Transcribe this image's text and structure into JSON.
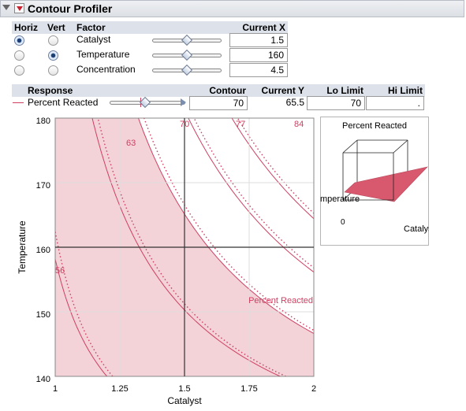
{
  "outline": {
    "title": "Contour Profiler"
  },
  "factor_table": {
    "headers": {
      "horiz": "Horiz",
      "vert": "Vert",
      "factor": "Factor",
      "current_x": "Current X"
    },
    "rows": [
      {
        "name": "Catalyst",
        "value": "1.5",
        "horiz": true,
        "vert": false
      },
      {
        "name": "Temperature",
        "value": "160",
        "horiz": false,
        "vert": true
      },
      {
        "name": "Concentration",
        "value": "4.5",
        "horiz": false,
        "vert": false
      }
    ]
  },
  "response_table": {
    "headers": {
      "response": "Response",
      "contour": "Contour",
      "current_y": "Current Y",
      "lo_limit": "Lo Limit",
      "hi_limit": "Hi Limit"
    },
    "row": {
      "name": "Percent Reacted",
      "contour": "70",
      "current_y": "65.5",
      "lo_limit": "70",
      "hi_limit": "."
    },
    "color": "#cf3f61"
  },
  "contour_plot": {
    "xlabel": "Catalyst",
    "ylabel": "Temperature",
    "x_ticks": [
      "1",
      "1.25",
      "1.5",
      "1.75",
      "2"
    ],
    "y_ticks": [
      "140",
      "150",
      "160",
      "170",
      "180"
    ],
    "contour_labels": [
      "56",
      "63",
      "70",
      "77",
      "84"
    ],
    "response_label": "Percent Reacted",
    "crosshair": {
      "catalyst": 1.5,
      "temperature": 160
    },
    "shade_color": "#f3d2d8",
    "line_color": "#cf3f61"
  },
  "surface_plot": {
    "title": "Percent Reacted",
    "axis_x": "Catalyst",
    "axis_y": "mperature",
    "axis_z": "0",
    "surface_color": "#d8596d"
  }
}
